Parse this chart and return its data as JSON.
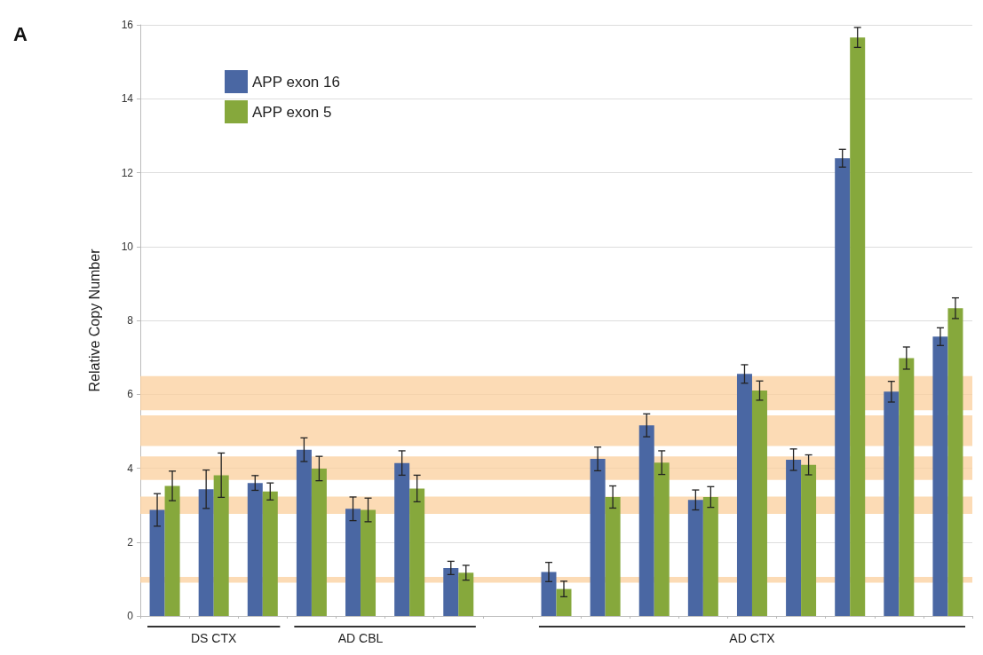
{
  "chart_data": {
    "type": "bar",
    "title": "A",
    "ylabel": "Relative Copy Number",
    "categories": [
      null,
      "DS CTX",
      null,
      null,
      "AD CBL",
      null,
      null,
      null,
      null,
      null,
      null,
      null,
      "AD CTX",
      null,
      null,
      null,
      null
    ],
    "series": [
      {
        "name": "APP exon 16",
        "color": "#4a67a3",
        "values": [
          2.87,
          3.43,
          3.6,
          4.5,
          2.9,
          4.14,
          1.3,
          null,
          1.19,
          4.25,
          5.16,
          3.14,
          6.55,
          4.23,
          12.39,
          6.07,
          7.56
        ],
        "errors": [
          0.44,
          0.52,
          0.2,
          0.32,
          0.32,
          0.33,
          0.18,
          null,
          0.26,
          0.32,
          0.31,
          0.27,
          0.25,
          0.29,
          0.24,
          0.28,
          0.24
        ]
      },
      {
        "name": "APP exon 5",
        "color": "#86a83c",
        "values": [
          3.52,
          3.81,
          3.37,
          3.99,
          2.87,
          3.45,
          1.17,
          null,
          0.73,
          3.22,
          4.15,
          3.22,
          6.1,
          4.09,
          15.66,
          6.98,
          8.33
        ],
        "errors": [
          0.4,
          0.6,
          0.23,
          0.33,
          0.32,
          0.36,
          0.2,
          null,
          0.21,
          0.3,
          0.32,
          0.28,
          0.26,
          0.27,
          0.27,
          0.3,
          0.28
        ]
      }
    ],
    "ylim": [
      0,
      16
    ],
    "yticks": [
      0,
      2,
      4,
      6,
      8,
      10,
      12,
      14,
      16
    ],
    "grid": "y",
    "legend": "top left",
    "bands": [
      {
        "axis": "y",
        "from": 5.57,
        "to": 6.49,
        "color": "#fbcf9c"
      },
      {
        "axis": "y",
        "from": 4.6,
        "to": 5.43,
        "color": "#fbcf9c"
      },
      {
        "axis": "y",
        "from": 3.68,
        "to": 4.32,
        "color": "#fbcf9c"
      },
      {
        "axis": "y",
        "from": 2.76,
        "to": 3.23,
        "color": "#fbcf9c"
      },
      {
        "axis": "y",
        "from": 0.9,
        "to": 1.06,
        "color": "#fbcf9c"
      }
    ]
  }
}
